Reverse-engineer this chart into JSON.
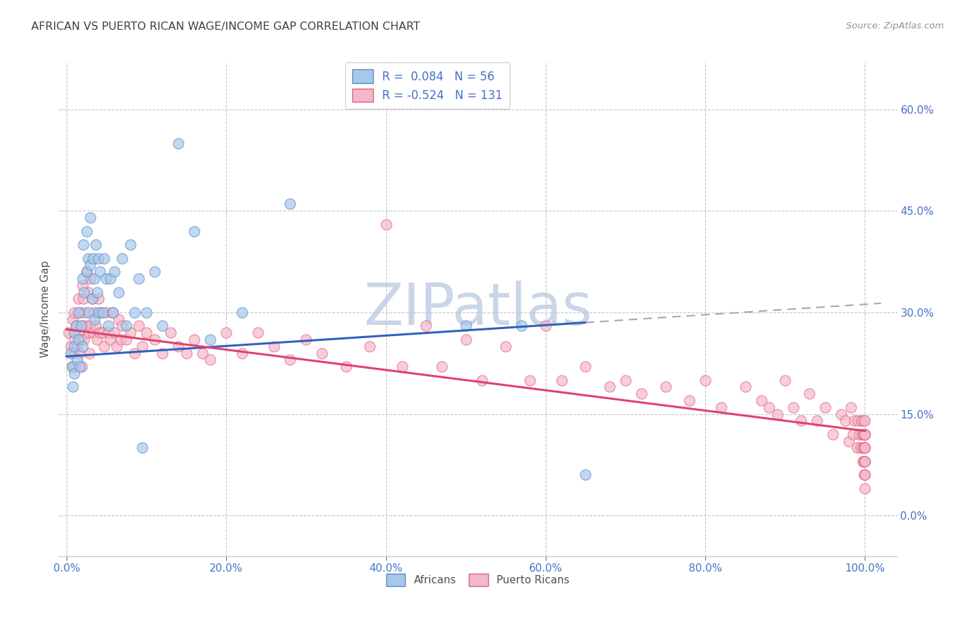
{
  "title": "AFRICAN VS PUERTO RICAN WAGE/INCOME GAP CORRELATION CHART",
  "source": "Source: ZipAtlas.com",
  "ylabel": "Wage/Income Gap",
  "ytick_values": [
    0.0,
    0.15,
    0.3,
    0.45,
    0.6
  ],
  "xtick_values": [
    0.0,
    0.2,
    0.4,
    0.6,
    0.8,
    1.0
  ],
  "xlim": [
    -0.01,
    1.04
  ],
  "ylim": [
    -0.06,
    0.67
  ],
  "legend_line1": "R =  0.084   N = 56",
  "legend_line2": "R = -0.524   N = 131",
  "blue_fill": "#A8C8E8",
  "blue_edge": "#5588CC",
  "pink_fill": "#F5B8C8",
  "pink_edge": "#E06080",
  "trend_blue": "#3060C0",
  "trend_pink": "#E04070",
  "trend_dash": "#A0A8B8",
  "bg_color": "#FFFFFF",
  "grid_color": "#C0C4CC",
  "watermark_color": "#CBD5E8",
  "title_color": "#404040",
  "source_color": "#909090",
  "tick_color": "#4472C4",
  "blue_R": 0.084,
  "pink_R": -0.524,
  "africans_x": [
    0.005,
    0.007,
    0.008,
    0.01,
    0.01,
    0.01,
    0.012,
    0.013,
    0.015,
    0.015,
    0.017,
    0.018,
    0.02,
    0.02,
    0.021,
    0.022,
    0.025,
    0.025,
    0.027,
    0.028,
    0.03,
    0.03,
    0.032,
    0.033,
    0.035,
    0.035,
    0.037,
    0.038,
    0.04,
    0.04,
    0.042,
    0.045,
    0.047,
    0.05,
    0.052,
    0.055,
    0.058,
    0.06,
    0.065,
    0.07,
    0.075,
    0.08,
    0.085,
    0.09,
    0.095,
    0.1,
    0.11,
    0.12,
    0.14,
    0.16,
    0.18,
    0.22,
    0.28,
    0.5,
    0.57,
    0.65
  ],
  "africans_y": [
    0.24,
    0.22,
    0.19,
    0.27,
    0.25,
    0.21,
    0.28,
    0.23,
    0.26,
    0.3,
    0.22,
    0.28,
    0.35,
    0.25,
    0.4,
    0.33,
    0.42,
    0.36,
    0.38,
    0.3,
    0.44,
    0.37,
    0.32,
    0.38,
    0.35,
    0.29,
    0.4,
    0.33,
    0.38,
    0.3,
    0.36,
    0.3,
    0.38,
    0.35,
    0.28,
    0.35,
    0.3,
    0.36,
    0.33,
    0.38,
    0.28,
    0.4,
    0.3,
    0.35,
    0.1,
    0.3,
    0.36,
    0.28,
    0.55,
    0.42,
    0.26,
    0.3,
    0.46,
    0.28,
    0.28,
    0.06
  ],
  "puertoricans_x": [
    0.003,
    0.005,
    0.007,
    0.008,
    0.009,
    0.01,
    0.01,
    0.01,
    0.012,
    0.013,
    0.015,
    0.015,
    0.016,
    0.017,
    0.018,
    0.019,
    0.02,
    0.02,
    0.021,
    0.022,
    0.023,
    0.025,
    0.025,
    0.027,
    0.028,
    0.029,
    0.03,
    0.03,
    0.032,
    0.033,
    0.035,
    0.037,
    0.038,
    0.04,
    0.042,
    0.043,
    0.045,
    0.047,
    0.05,
    0.052,
    0.055,
    0.057,
    0.06,
    0.063,
    0.065,
    0.068,
    0.07,
    0.075,
    0.08,
    0.085,
    0.09,
    0.095,
    0.1,
    0.11,
    0.12,
    0.13,
    0.14,
    0.15,
    0.16,
    0.17,
    0.18,
    0.2,
    0.22,
    0.24,
    0.26,
    0.28,
    0.3,
    0.32,
    0.35,
    0.38,
    0.4,
    0.42,
    0.45,
    0.47,
    0.5,
    0.52,
    0.55,
    0.58,
    0.6,
    0.62,
    0.65,
    0.68,
    0.7,
    0.72,
    0.75,
    0.78,
    0.8,
    0.82,
    0.85,
    0.87,
    0.88,
    0.89,
    0.9,
    0.91,
    0.92,
    0.93,
    0.94,
    0.95,
    0.96,
    0.97,
    0.975,
    0.98,
    0.982,
    0.985,
    0.987,
    0.99,
    0.991,
    0.993,
    0.994,
    0.995,
    0.996,
    0.997,
    0.997,
    0.998,
    0.998,
    0.999,
    0.999,
    0.999,
    1.0,
    1.0,
    1.0,
    1.0,
    1.0,
    1.0,
    1.0,
    1.0,
    1.0,
    1.0,
    1.0,
    1.0,
    1.0
  ],
  "puertoricans_y": [
    0.27,
    0.25,
    0.22,
    0.29,
    0.24,
    0.3,
    0.26,
    0.22,
    0.28,
    0.25,
    0.32,
    0.27,
    0.24,
    0.3,
    0.26,
    0.22,
    0.34,
    0.28,
    0.32,
    0.26,
    0.3,
    0.36,
    0.28,
    0.33,
    0.27,
    0.24,
    0.35,
    0.28,
    0.32,
    0.27,
    0.3,
    0.28,
    0.26,
    0.32,
    0.27,
    0.3,
    0.27,
    0.25,
    0.3,
    0.27,
    0.26,
    0.3,
    0.27,
    0.25,
    0.29,
    0.26,
    0.28,
    0.26,
    0.27,
    0.24,
    0.28,
    0.25,
    0.27,
    0.26,
    0.24,
    0.27,
    0.25,
    0.24,
    0.26,
    0.24,
    0.23,
    0.27,
    0.24,
    0.27,
    0.25,
    0.23,
    0.26,
    0.24,
    0.22,
    0.25,
    0.43,
    0.22,
    0.28,
    0.22,
    0.26,
    0.2,
    0.25,
    0.2,
    0.28,
    0.2,
    0.22,
    0.19,
    0.2,
    0.18,
    0.19,
    0.17,
    0.2,
    0.16,
    0.19,
    0.17,
    0.16,
    0.15,
    0.2,
    0.16,
    0.14,
    0.18,
    0.14,
    0.16,
    0.12,
    0.15,
    0.14,
    0.11,
    0.16,
    0.12,
    0.14,
    0.1,
    0.14,
    0.12,
    0.1,
    0.14,
    0.12,
    0.1,
    0.08,
    0.14,
    0.12,
    0.1,
    0.08,
    0.06,
    0.14,
    0.12,
    0.1,
    0.08,
    0.12,
    0.1,
    0.06,
    0.08,
    0.12,
    0.06,
    0.1,
    0.04,
    0.08
  ]
}
